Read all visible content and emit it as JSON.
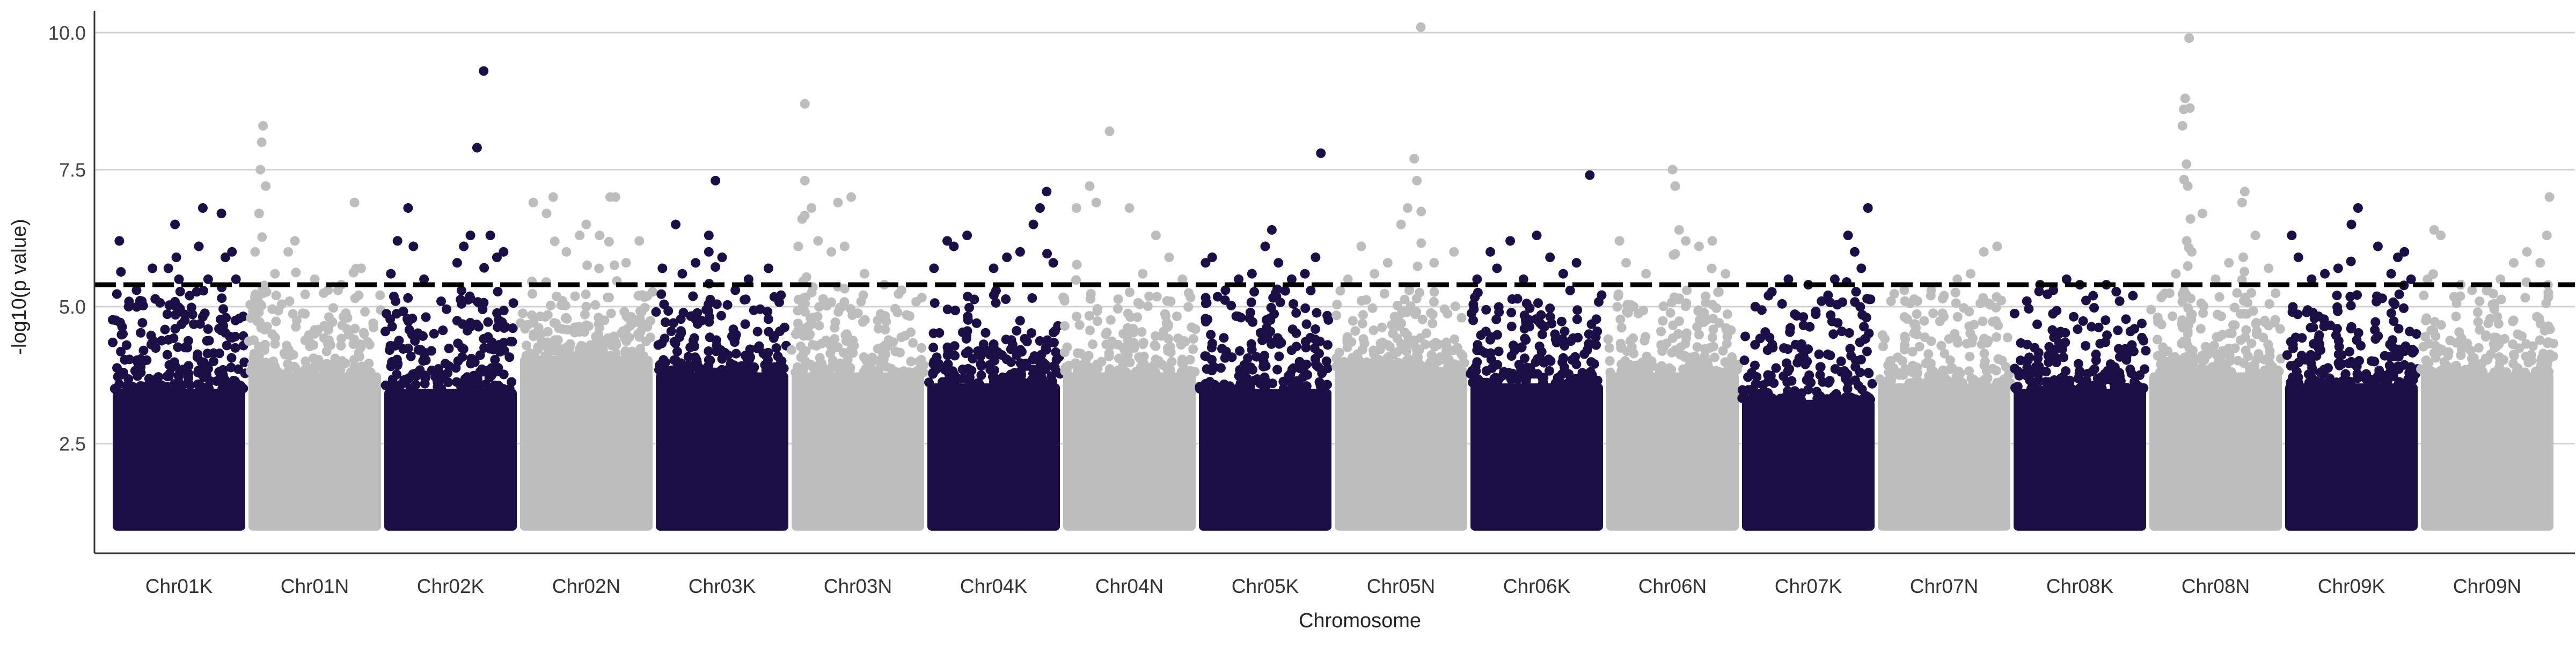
{
  "chart_data": {
    "type": "scatter",
    "title": "",
    "xlabel": "Chromosome",
    "ylabel": "-log10(p value)",
    "ylim": [
      0.5,
      10.4
    ],
    "yticks": [
      2.5,
      5.0,
      7.5,
      10.0
    ],
    "ytick_labels": [
      "2.5",
      "5.0",
      "7.5",
      "10.0"
    ],
    "grid": "horizontal major gridlines",
    "legend": "none",
    "threshold": 5.4,
    "categories": [
      "Chr01K",
      "Chr01N",
      "Chr02K",
      "Chr02N",
      "Chr03K",
      "Chr03N",
      "Chr04K",
      "Chr04N",
      "Chr05K",
      "Chr05N",
      "Chr06K",
      "Chr06N",
      "Chr07K",
      "Chr07N",
      "Chr08K",
      "Chr08N",
      "Chr09K",
      "Chr09N"
    ],
    "colors": {
      "dark": "#1c0f45",
      "light": "#bdbdbd",
      "threshold_line": "#000000",
      "grid": "#d3d3d3",
      "axis": "#333333"
    },
    "series": [
      {
        "chromosome": "Chr01K",
        "color": "dark",
        "dense_top": 3.5,
        "top_points": [
          [
            0.05,
            6.2
          ],
          [
            0.12,
            5.0
          ],
          [
            0.18,
            5.3
          ],
          [
            0.22,
            5.1
          ],
          [
            0.3,
            5.7
          ],
          [
            0.42,
            5.7
          ],
          [
            0.47,
            6.5
          ],
          [
            0.48,
            5.9
          ],
          [
            0.5,
            5.5
          ],
          [
            0.58,
            5.2
          ],
          [
            0.65,
            6.1
          ],
          [
            0.68,
            6.8
          ],
          [
            0.72,
            5.5
          ],
          [
            0.82,
            6.7
          ],
          [
            0.85,
            5.9
          ],
          [
            0.9,
            6.0
          ],
          [
            0.93,
            5.5
          ]
        ]
      },
      {
        "chromosome": "Chr01N",
        "color": "light",
        "dense_top": 3.8,
        "top_points": [
          [
            0.05,
            6.0
          ],
          [
            0.08,
            6.7
          ],
          [
            0.09,
            7.5
          ],
          [
            0.1,
            8.0
          ],
          [
            0.11,
            8.3
          ],
          [
            0.13,
            7.2
          ],
          [
            0.2,
            5.6
          ],
          [
            0.3,
            6.0
          ],
          [
            0.35,
            6.2
          ],
          [
            0.5,
            5.5
          ],
          [
            0.6,
            5.3
          ],
          [
            0.7,
            5.4
          ],
          [
            0.8,
            6.9
          ],
          [
            0.85,
            5.7
          ]
        ]
      },
      {
        "chromosome": "Chr02K",
        "color": "dark",
        "dense_top": 3.5,
        "top_points": [
          [
            0.05,
            5.6
          ],
          [
            0.1,
            6.2
          ],
          [
            0.18,
            6.8
          ],
          [
            0.22,
            6.1
          ],
          [
            0.3,
            5.5
          ],
          [
            0.55,
            5.8
          ],
          [
            0.6,
            6.1
          ],
          [
            0.65,
            6.3
          ],
          [
            0.7,
            7.9
          ],
          [
            0.75,
            9.3
          ],
          [
            0.8,
            6.3
          ],
          [
            0.85,
            5.9
          ],
          [
            0.9,
            6.0
          ]
        ]
      },
      {
        "chromosome": "Chr02N",
        "color": "light",
        "dense_top": 4.1,
        "top_points": [
          [
            0.1,
            6.9
          ],
          [
            0.2,
            6.7
          ],
          [
            0.25,
            7.0
          ],
          [
            0.35,
            6.0
          ],
          [
            0.45,
            6.3
          ],
          [
            0.5,
            6.5
          ],
          [
            0.6,
            6.3
          ],
          [
            0.68,
            7.0
          ],
          [
            0.72,
            7.0
          ],
          [
            0.8,
            5.8
          ],
          [
            0.9,
            6.2
          ]
        ]
      },
      {
        "chromosome": "Chr03K",
        "color": "dark",
        "dense_top": 3.8,
        "top_points": [
          [
            0.05,
            5.7
          ],
          [
            0.15,
            6.5
          ],
          [
            0.2,
            5.6
          ],
          [
            0.3,
            5.8
          ],
          [
            0.4,
            6.3
          ],
          [
            0.4,
            6.0
          ],
          [
            0.45,
            7.3
          ],
          [
            0.5,
            5.9
          ],
          [
            0.6,
            5.3
          ],
          [
            0.7,
            5.5
          ],
          [
            0.85,
            5.7
          ]
        ]
      },
      {
        "chromosome": "Chr03N",
        "color": "light",
        "dense_top": 3.8,
        "top_points": [
          [
            0.05,
            6.1
          ],
          [
            0.08,
            6.6
          ],
          [
            0.1,
            7.3
          ],
          [
            0.1,
            8.7
          ],
          [
            0.15,
            6.8
          ],
          [
            0.2,
            6.2
          ],
          [
            0.3,
            6.0
          ],
          [
            0.35,
            6.9
          ],
          [
            0.4,
            6.1
          ],
          [
            0.45,
            7.0
          ],
          [
            0.55,
            5.6
          ],
          [
            0.7,
            5.4
          ]
        ]
      },
      {
        "chromosome": "Chr04K",
        "color": "dark",
        "dense_top": 3.6,
        "top_points": [
          [
            0.05,
            5.7
          ],
          [
            0.15,
            6.2
          ],
          [
            0.2,
            6.1
          ],
          [
            0.3,
            6.3
          ],
          [
            0.5,
            5.7
          ],
          [
            0.6,
            5.9
          ],
          [
            0.7,
            6.0
          ],
          [
            0.8,
            6.5
          ],
          [
            0.85,
            6.8
          ],
          [
            0.9,
            7.1
          ],
          [
            0.95,
            5.8
          ]
        ]
      },
      {
        "chromosome": "Chr04N",
        "color": "light",
        "dense_top": 3.8,
        "top_points": [
          [
            0.1,
            6.8
          ],
          [
            0.2,
            7.2
          ],
          [
            0.25,
            6.9
          ],
          [
            0.35,
            8.2
          ],
          [
            0.5,
            6.8
          ],
          [
            0.6,
            5.6
          ],
          [
            0.7,
            6.3
          ],
          [
            0.8,
            5.9
          ],
          [
            0.9,
            5.5
          ]
        ]
      },
      {
        "chromosome": "Chr05K",
        "color": "dark",
        "dense_top": 3.5,
        "top_points": [
          [
            0.05,
            5.8
          ],
          [
            0.1,
            5.9
          ],
          [
            0.2,
            5.3
          ],
          [
            0.3,
            5.5
          ],
          [
            0.4,
            5.6
          ],
          [
            0.5,
            6.1
          ],
          [
            0.55,
            6.4
          ],
          [
            0.6,
            5.8
          ],
          [
            0.7,
            5.5
          ],
          [
            0.8,
            5.6
          ],
          [
            0.88,
            5.9
          ],
          [
            0.92,
            7.8
          ]
        ]
      },
      {
        "chromosome": "Chr05N",
        "color": "light",
        "dense_top": 3.9,
        "top_points": [
          [
            0.1,
            5.5
          ],
          [
            0.2,
            6.1
          ],
          [
            0.3,
            5.6
          ],
          [
            0.4,
            5.8
          ],
          [
            0.5,
            6.5
          ],
          [
            0.55,
            6.8
          ],
          [
            0.6,
            7.7
          ],
          [
            0.62,
            7.3
          ],
          [
            0.65,
            10.1
          ],
          [
            0.75,
            5.8
          ],
          [
            0.9,
            6.0
          ]
        ]
      },
      {
        "chromosome": "Chr06K",
        "color": "dark",
        "dense_top": 3.6,
        "top_points": [
          [
            0.05,
            5.5
          ],
          [
            0.15,
            6.0
          ],
          [
            0.2,
            5.7
          ],
          [
            0.3,
            6.2
          ],
          [
            0.4,
            5.5
          ],
          [
            0.5,
            6.3
          ],
          [
            0.6,
            5.9
          ],
          [
            0.7,
            5.6
          ],
          [
            0.8,
            5.8
          ],
          [
            0.9,
            7.4
          ]
        ]
      },
      {
        "chromosome": "Chr06N",
        "color": "light",
        "dense_top": 3.8,
        "top_points": [
          [
            0.1,
            6.2
          ],
          [
            0.15,
            5.8
          ],
          [
            0.3,
            5.6
          ],
          [
            0.5,
            7.5
          ],
          [
            0.52,
            7.2
          ],
          [
            0.55,
            6.4
          ],
          [
            0.6,
            6.2
          ],
          [
            0.7,
            6.1
          ],
          [
            0.8,
            6.2
          ],
          [
            0.9,
            5.6
          ]
        ]
      },
      {
        "chromosome": "Chr07K",
        "color": "dark",
        "dense_top": 3.3,
        "top_points": [
          [
            0.1,
            5.0
          ],
          [
            0.2,
            5.2
          ],
          [
            0.35,
            5.5
          ],
          [
            0.5,
            5.4
          ],
          [
            0.6,
            5.1
          ],
          [
            0.7,
            5.5
          ],
          [
            0.8,
            6.3
          ],
          [
            0.85,
            6.0
          ],
          [
            0.9,
            5.7
          ],
          [
            0.95,
            6.8
          ]
        ]
      },
      {
        "chromosome": "Chr07N",
        "color": "light",
        "dense_top": 3.6,
        "top_points": [
          [
            0.1,
            5.1
          ],
          [
            0.2,
            5.3
          ],
          [
            0.3,
            5.1
          ],
          [
            0.4,
            5.2
          ],
          [
            0.5,
            5.2
          ],
          [
            0.6,
            5.5
          ],
          [
            0.7,
            5.6
          ],
          [
            0.8,
            6.0
          ],
          [
            0.9,
            6.1
          ]
        ]
      },
      {
        "chromosome": "Chr08K",
        "color": "dark",
        "dense_top": 3.5,
        "top_points": [
          [
            0.1,
            5.1
          ],
          [
            0.2,
            5.4
          ],
          [
            0.3,
            5.3
          ],
          [
            0.4,
            5.5
          ],
          [
            0.5,
            5.4
          ],
          [
            0.6,
            5.2
          ],
          [
            0.7,
            5.4
          ],
          [
            0.8,
            5.1
          ],
          [
            0.9,
            5.2
          ]
        ]
      },
      {
        "chromosome": "Chr08N",
        "color": "light",
        "dense_top": 3.8,
        "top_points": [
          [
            0.1,
            5.2
          ],
          [
            0.2,
            5.6
          ],
          [
            0.25,
            8.3
          ],
          [
            0.26,
            8.6
          ],
          [
            0.27,
            8.8
          ],
          [
            0.28,
            7.6
          ],
          [
            0.29,
            7.2
          ],
          [
            0.3,
            9.9
          ],
          [
            0.31,
            6.6
          ],
          [
            0.32,
            6.0
          ],
          [
            0.4,
            6.7
          ],
          [
            0.5,
            5.5
          ],
          [
            0.6,
            5.8
          ],
          [
            0.7,
            6.9
          ],
          [
            0.72,
            7.1
          ],
          [
            0.8,
            6.3
          ],
          [
            0.9,
            5.7
          ]
        ]
      },
      {
        "chromosome": "Chr09K",
        "color": "dark",
        "dense_top": 3.6,
        "top_points": [
          [
            0.05,
            6.3
          ],
          [
            0.1,
            5.9
          ],
          [
            0.2,
            5.5
          ],
          [
            0.3,
            5.6
          ],
          [
            0.4,
            5.7
          ],
          [
            0.5,
            6.5
          ],
          [
            0.55,
            6.8
          ],
          [
            0.7,
            6.1
          ],
          [
            0.8,
            5.6
          ],
          [
            0.85,
            5.9
          ],
          [
            0.9,
            6.0
          ],
          [
            0.95,
            5.5
          ]
        ]
      },
      {
        "chromosome": "Chr09N",
        "color": "light",
        "dense_top": 3.8,
        "top_points": [
          [
            0.05,
            5.5
          ],
          [
            0.1,
            6.4
          ],
          [
            0.15,
            6.3
          ],
          [
            0.3,
            5.4
          ],
          [
            0.5,
            5.3
          ],
          [
            0.6,
            5.5
          ],
          [
            0.7,
            5.8
          ],
          [
            0.8,
            6.0
          ],
          [
            0.9,
            5.8
          ],
          [
            0.95,
            6.3
          ],
          [
            0.97,
            7.0
          ]
        ]
      }
    ]
  }
}
